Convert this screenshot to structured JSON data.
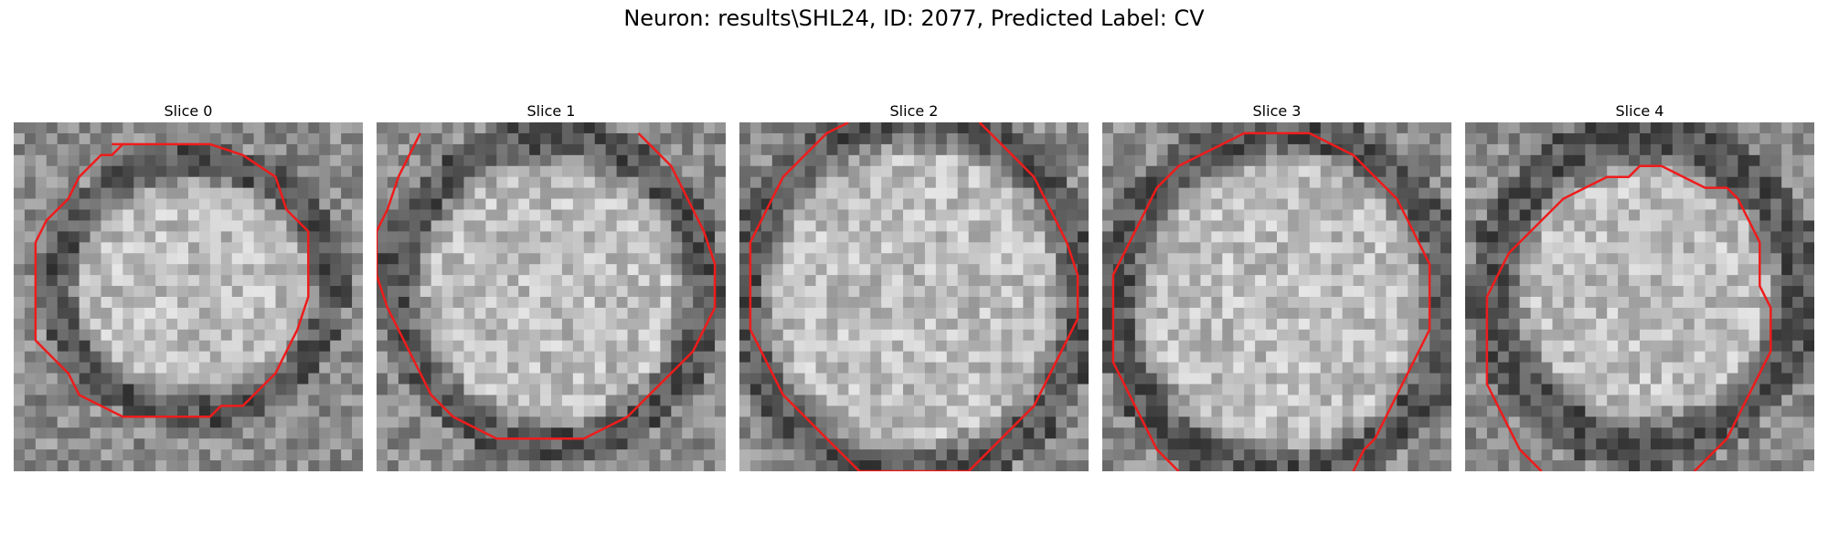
{
  "figure": {
    "title": "Neuron: results\\SHL24, ID: 2077, Predicted Label: CV"
  },
  "slices": [
    {
      "title": "Slice 0"
    },
    {
      "title": "Slice 1"
    },
    {
      "title": "Slice 2"
    },
    {
      "title": "Slice 3"
    },
    {
      "title": "Slice 4"
    }
  ],
  "colors": {
    "contour": "#ee1c1c",
    "background": "#ffffff"
  }
}
